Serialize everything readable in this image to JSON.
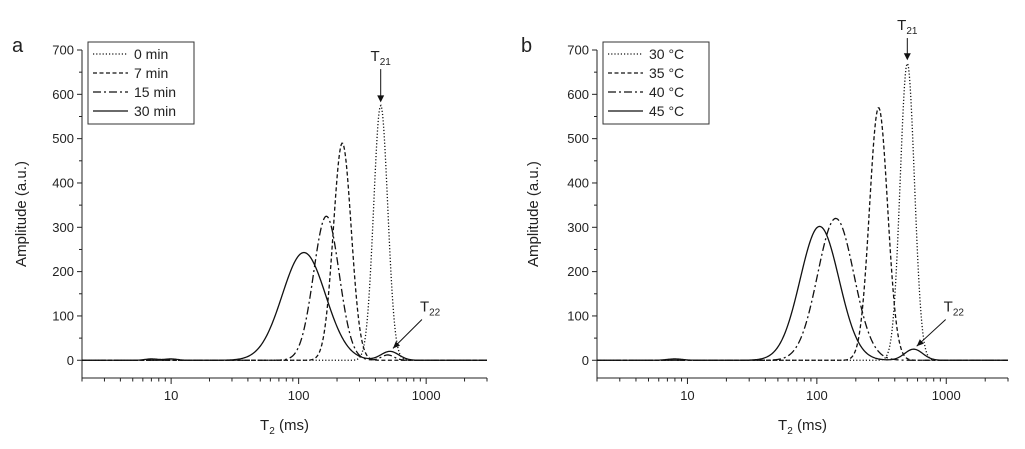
{
  "chart_data": [
    {
      "type": "line",
      "panel_label": "a",
      "xscale": "log",
      "xlabel": {
        "main": "T",
        "sub": "2",
        "unit": " (ms)"
      },
      "ylabel": "Amplitude (a.u.)",
      "xlim": [
        2,
        3000
      ],
      "ylim": [
        -40,
        700
      ],
      "xticks": [
        10,
        100,
        1000
      ],
      "xtick_labels": [
        "10",
        "100",
        "1000"
      ],
      "yticks": [
        0,
        100,
        200,
        300,
        400,
        500,
        600,
        700
      ],
      "ytick_labels": [
        "0",
        "100",
        "200",
        "300",
        "400",
        "500",
        "600",
        "700"
      ],
      "legend_position": "top-left",
      "series": [
        {
          "name": "0 min",
          "dash": "dotted",
          "peaks": [
            {
              "center_ms": 440,
              "amplitude": 575,
              "width": 0.055
            }
          ]
        },
        {
          "name": "7 min",
          "dash": "dashed",
          "peaks": [
            {
              "center_ms": 220,
              "amplitude": 490,
              "width": 0.07
            }
          ]
        },
        {
          "name": "15 min",
          "dash": "dashdot",
          "peaks": [
            {
              "center_ms": 165,
              "amplitude": 325,
              "width": 0.1
            },
            {
              "center_ms": 500,
              "amplitude": 12,
              "width": 0.05
            }
          ]
        },
        {
          "name": "30 min",
          "dash": "solid",
          "peaks": [
            {
              "center_ms": 110,
              "amplitude": 243,
              "width": 0.17
            },
            {
              "center_ms": 520,
              "amplitude": 20,
              "width": 0.07
            },
            {
              "center_ms": 7,
              "amplitude": 3,
              "width": 0.05
            },
            {
              "center_ms": 10,
              "amplitude": 3,
              "width": 0.05
            }
          ]
        }
      ],
      "annotations": [
        {
          "main": "T",
          "sub": "21",
          "x": 440,
          "y": 575,
          "label_y": 675
        },
        {
          "main": "T",
          "sub": "22",
          "x": 520,
          "y": 20,
          "label_y": 110
        }
      ]
    },
    {
      "type": "line",
      "panel_label": "b",
      "xscale": "log",
      "xlabel": {
        "main": "T",
        "sub": "2",
        "unit": " (ms)"
      },
      "ylabel": "Amplitude (a.u.)",
      "xlim": [
        2,
        3000
      ],
      "ylim": [
        -40,
        700
      ],
      "xticks": [
        10,
        100,
        1000
      ],
      "xtick_labels": [
        "10",
        "100",
        "1000"
      ],
      "yticks": [
        0,
        100,
        200,
        300,
        400,
        500,
        600,
        700
      ],
      "ytick_labels": [
        "0",
        "100",
        "200",
        "300",
        "400",
        "500",
        "600",
        "700"
      ],
      "legend_position": "top-left",
      "series": [
        {
          "name": "30 °C",
          "dash": "dotted",
          "peaks": [
            {
              "center_ms": 500,
              "amplitude": 670,
              "width": 0.055
            }
          ]
        },
        {
          "name": "35 °C",
          "dash": "dashed",
          "peaks": [
            {
              "center_ms": 300,
              "amplitude": 570,
              "width": 0.07
            }
          ]
        },
        {
          "name": "40 °C",
          "dash": "dashdot",
          "peaks": [
            {
              "center_ms": 140,
              "amplitude": 320,
              "width": 0.14
            }
          ]
        },
        {
          "name": "45 °C",
          "dash": "solid",
          "peaks": [
            {
              "center_ms": 105,
              "amplitude": 302,
              "width": 0.15
            },
            {
              "center_ms": 560,
              "amplitude": 25,
              "width": 0.07
            },
            {
              "center_ms": 8,
              "amplitude": 3,
              "width": 0.06
            }
          ]
        }
      ],
      "annotations": [
        {
          "main": "T",
          "sub": "21",
          "x": 500,
          "y": 670,
          "label_y": 745
        },
        {
          "main": "T",
          "sub": "22",
          "x": 560,
          "y": 25,
          "label_y": 110
        }
      ]
    }
  ]
}
